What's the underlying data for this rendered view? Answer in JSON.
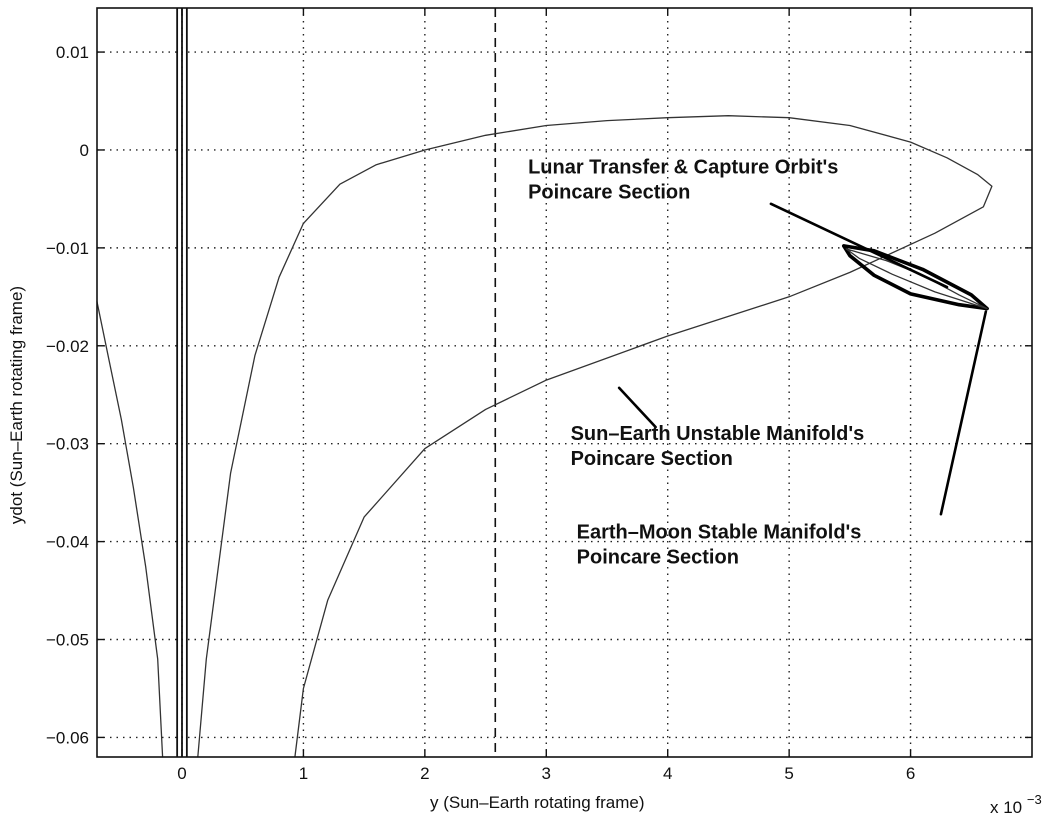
{
  "chart_data": {
    "type": "line",
    "title": "",
    "xlabel": "y (Sun–Earth rotating frame)",
    "ylabel": "ydot (Sun–Earth rotating frame)",
    "x_exponent_label": "x 10",
    "x_exponent_power": "−3",
    "xlim": [
      -0.7,
      7.0
    ],
    "ylim": [
      -0.062,
      0.0145
    ],
    "grid": true,
    "xticks": [
      0,
      1,
      2,
      3,
      4,
      5,
      6
    ],
    "xtick_labels": [
      "0",
      "1",
      "2",
      "3",
      "4",
      "5",
      "6"
    ],
    "yticks": [
      0.01,
      0,
      -0.01,
      -0.02,
      -0.03,
      -0.04,
      -0.05,
      -0.06
    ],
    "ytick_labels": [
      "0.01",
      "0",
      "−0.01",
      "−0.02",
      "−0.03",
      "−0.04",
      "−0.05",
      "−0.06"
    ],
    "series": [
      {
        "style": "thin",
        "points": [
          [
            -0.7,
            -0.0155
          ],
          [
            -0.6,
            -0.0215
          ],
          [
            -0.5,
            -0.0275
          ],
          [
            -0.4,
            -0.0345
          ],
          [
            -0.3,
            -0.0425
          ],
          [
            -0.2,
            -0.052
          ],
          [
            -0.16,
            -0.062
          ]
        ]
      },
      {
        "style": "thin",
        "points": [
          [
            0.13,
            -0.062
          ],
          [
            0.2,
            -0.052
          ],
          [
            0.4,
            -0.033
          ],
          [
            0.6,
            -0.021
          ],
          [
            0.8,
            -0.013
          ],
          [
            1.0,
            -0.0075
          ],
          [
            1.3,
            -0.0035
          ],
          [
            1.6,
            -0.0015
          ],
          [
            2.0,
            0.0
          ],
          [
            2.5,
            0.0015
          ],
          [
            3.0,
            0.0025
          ],
          [
            3.5,
            0.003
          ],
          [
            4.0,
            0.0033
          ],
          [
            4.5,
            0.0035
          ],
          [
            5.0,
            0.0033
          ],
          [
            5.5,
            0.0025
          ],
          [
            6.0,
            0.0008
          ],
          [
            6.3,
            -0.0008
          ],
          [
            6.55,
            -0.0025
          ],
          [
            6.67,
            -0.0037
          ],
          [
            6.6,
            -0.0058
          ],
          [
            6.2,
            -0.0085
          ],
          [
            5.5,
            -0.0125
          ],
          [
            5.0,
            -0.015
          ],
          [
            4.0,
            -0.019
          ],
          [
            3.0,
            -0.0235
          ],
          [
            2.5,
            -0.0265
          ],
          [
            2.0,
            -0.0305
          ],
          [
            1.5,
            -0.0375
          ],
          [
            1.2,
            -0.046
          ],
          [
            1.0,
            -0.055
          ],
          [
            0.93,
            -0.062
          ]
        ]
      },
      {
        "style": "thick",
        "points": [
          [
            5.45,
            -0.0098
          ],
          [
            5.7,
            -0.0103
          ],
          [
            6.1,
            -0.0122
          ],
          [
            6.5,
            -0.0148
          ],
          [
            6.63,
            -0.0162
          ],
          [
            6.4,
            -0.0158
          ],
          [
            6.0,
            -0.0147
          ],
          [
            5.7,
            -0.0128
          ],
          [
            5.5,
            -0.0108
          ],
          [
            5.45,
            -0.0098
          ]
        ]
      },
      {
        "style": "thin",
        "points": [
          [
            5.47,
            -0.0101
          ],
          [
            5.8,
            -0.0113
          ],
          [
            6.1,
            -0.0128
          ],
          [
            6.4,
            -0.0148
          ],
          [
            6.63,
            -0.0162
          ],
          [
            6.2,
            -0.0145
          ],
          [
            5.85,
            -0.0127
          ],
          [
            5.58,
            -0.0111
          ],
          [
            5.47,
            -0.0101
          ]
        ]
      }
    ],
    "vertical_lines": [
      {
        "x": -0.04,
        "style": "solid"
      },
      {
        "x": 0.0,
        "style": "solid"
      },
      {
        "x": 0.04,
        "style": "solid"
      },
      {
        "x": 2.58,
        "style": "dashed"
      }
    ],
    "annotations": [
      {
        "text_lines": [
          "Lunar Transfer & Capture Orbit's",
          "Poincare Section"
        ],
        "text_x": 2.85,
        "text_y": -0.0024,
        "line_from": [
          4.85,
          -0.0055
        ],
        "line_to": [
          6.3,
          -0.014
        ]
      },
      {
        "text_lines": [
          "Sun–Earth Unstable Manifold's",
          "Poincare Section"
        ],
        "text_x": 3.2,
        "text_y": -0.0296,
        "line_from": [
          3.9,
          -0.0283
        ],
        "line_to": [
          3.6,
          -0.0243
        ]
      },
      {
        "text_lines": [
          "Earth–Moon Stable Manifold's",
          "Poincare Section"
        ],
        "text_x": 3.25,
        "text_y": -0.0397,
        "line_from": [
          6.25,
          -0.0372
        ],
        "line_to": [
          6.62,
          -0.0165
        ]
      }
    ]
  }
}
